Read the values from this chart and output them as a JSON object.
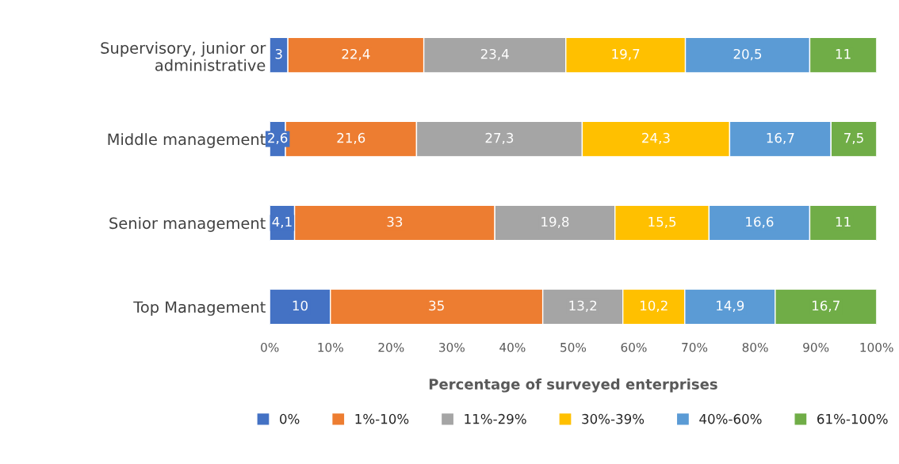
{
  "chart_data": {
    "type": "bar",
    "orientation": "horizontal",
    "stacked": true,
    "categories": [
      "Supervisory, junior or\nadministrative",
      "Middle management",
      "Senior management",
      "Top Management"
    ],
    "xlabel": "Percentage of surveyed enterprises",
    "xlim": [
      0,
      100
    ],
    "xticks": [
      {
        "value": 0,
        "label": "0%"
      },
      {
        "value": 10,
        "label": "10%"
      },
      {
        "value": 20,
        "label": "20%"
      },
      {
        "value": 30,
        "label": "30%"
      },
      {
        "value": 40,
        "label": "40%"
      },
      {
        "value": 50,
        "label": "50%"
      },
      {
        "value": 60,
        "label": "60%"
      },
      {
        "value": 70,
        "label": "70%"
      },
      {
        "value": 80,
        "label": "80%"
      },
      {
        "value": 90,
        "label": "90%"
      },
      {
        "value": 100,
        "label": "100%"
      }
    ],
    "legend": "bottom",
    "grid": false,
    "series": [
      {
        "name": "0%",
        "color": "#4472c4",
        "values": [
          3,
          2.6,
          4.1,
          10
        ],
        "value_labels": [
          "3",
          "2,6",
          "4,1",
          "10"
        ]
      },
      {
        "name": "1%-10%",
        "color": "#ed7d31",
        "values": [
          22.4,
          21.6,
          33,
          35
        ],
        "value_labels": [
          "22,4",
          "21,6",
          "33",
          "35"
        ]
      },
      {
        "name": "11%-29%",
        "color": "#a5a5a5",
        "values": [
          23.4,
          27.3,
          19.8,
          13.2
        ],
        "value_labels": [
          "23,4",
          "27,3",
          "19,8",
          "13,2"
        ]
      },
      {
        "name": "30%-39%",
        "color": "#ffc000",
        "values": [
          19.7,
          24.3,
          15.5,
          10.2
        ],
        "value_labels": [
          "19,7",
          "24,3",
          "15,5",
          "10,2"
        ]
      },
      {
        "name": "40%-60%",
        "color": "#5b9bd5",
        "values": [
          20.5,
          16.7,
          16.6,
          14.9
        ],
        "value_labels": [
          "20,5",
          "16,7",
          "16,6",
          "14,9"
        ]
      },
      {
        "name": "61%-100%",
        "color": "#70ad47",
        "values": [
          11,
          7.5,
          11,
          16.7
        ],
        "value_labels": [
          "11",
          "7,5",
          "11",
          "16,7"
        ]
      }
    ]
  }
}
